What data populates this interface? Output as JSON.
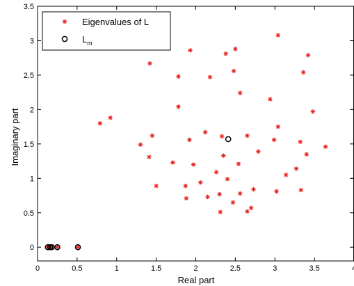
{
  "chart_data": {
    "type": "scatter",
    "xlabel": "Real part",
    "ylabel": "Imaginary part",
    "xlim": [
      0,
      4
    ],
    "ylim": [
      -0.2,
      3.5
    ],
    "xticks": [
      0,
      0.5,
      1,
      1.5,
      2,
      2.5,
      3,
      3.5,
      4
    ],
    "yticks": [
      0,
      0.5,
      1,
      1.5,
      2,
      2.5,
      3,
      3.5
    ],
    "xtick_labels": [
      "0",
      "0.5",
      "1",
      "1.5",
      "2",
      "2.5",
      "3",
      "3.5",
      "4"
    ],
    "ytick_labels": [
      "0",
      "0.5",
      "1",
      "1.5",
      "2",
      "2.5",
      "3",
      "3.5"
    ],
    "grid": false,
    "legend_position": "top-left",
    "series": [
      {
        "name": "Eigenvalues of L",
        "marker": "star",
        "color": "#e8201c",
        "points": [
          [
            0.13,
            0
          ],
          [
            0.16,
            0
          ],
          [
            0.18,
            0
          ],
          [
            0.25,
            0
          ],
          [
            0.51,
            0
          ],
          [
            0.79,
            1.8
          ],
          [
            0.92,
            1.88
          ],
          [
            1.3,
            1.49
          ],
          [
            1.41,
            1.31
          ],
          [
            1.45,
            1.62
          ],
          [
            1.42,
            2.67
          ],
          [
            1.5,
            0.89
          ],
          [
            1.71,
            1.23
          ],
          [
            1.78,
            2.48
          ],
          [
            1.78,
            2.04
          ],
          [
            1.87,
            0.89
          ],
          [
            1.88,
            0.71
          ],
          [
            1.92,
            1.56
          ],
          [
            1.93,
            2.86
          ],
          [
            1.97,
            1.2
          ],
          [
            2.06,
            0.94
          ],
          [
            2.12,
            1.67
          ],
          [
            2.15,
            0.73
          ],
          [
            2.18,
            2.47
          ],
          [
            2.26,
            1.09
          ],
          [
            2.3,
            0.77
          ],
          [
            2.31,
            0.51
          ],
          [
            2.33,
            1.61
          ],
          [
            2.35,
            1.33
          ],
          [
            2.38,
            2.81
          ],
          [
            2.4,
            0.99
          ],
          [
            2.47,
            0.65
          ],
          [
            2.48,
            2.56
          ],
          [
            2.5,
            2.88
          ],
          [
            2.54,
            1.21
          ],
          [
            2.56,
            2.24
          ],
          [
            2.56,
            0.78
          ],
          [
            2.65,
            1.62
          ],
          [
            2.65,
            0.52
          ],
          [
            2.7,
            0.57
          ],
          [
            2.73,
            0.84
          ],
          [
            2.79,
            1.39
          ],
          [
            2.94,
            2.15
          ],
          [
            2.99,
            1.56
          ],
          [
            3.02,
            0.81
          ],
          [
            3.04,
            1.75
          ],
          [
            3.04,
            3.08
          ],
          [
            3.14,
            1.05
          ],
          [
            3.27,
            1.14
          ],
          [
            3.32,
            1.53
          ],
          [
            3.33,
            0.83
          ],
          [
            3.36,
            2.54
          ],
          [
            3.4,
            1.35
          ],
          [
            3.42,
            2.79
          ],
          [
            3.48,
            1.97
          ],
          [
            3.64,
            1.46
          ]
        ]
      },
      {
        "name": "L",
        "name_subscript": "m",
        "marker": "circle",
        "color": "#000000",
        "points": [
          [
            0.13,
            0
          ],
          [
            0.16,
            0
          ],
          [
            0.18,
            0
          ],
          [
            0.25,
            0
          ],
          [
            0.51,
            0
          ],
          [
            2.41,
            1.57
          ]
        ]
      }
    ]
  }
}
